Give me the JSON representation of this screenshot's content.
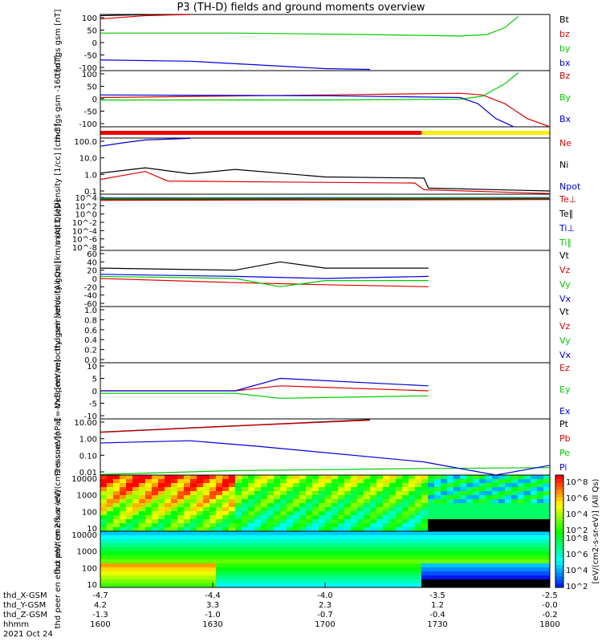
{
  "title": "P3 (TH-D) fields and ground moments overview",
  "chart_data": {
    "type": "line",
    "title": "P3 (TH-D) fields and ground moments overview",
    "date": "2021 Oct 24",
    "xaxis": {
      "time_ticks": [
        "1600",
        "1630",
        "1700",
        "1730",
        "1800"
      ],
      "rows": [
        {
          "label": "thd_X-GSM",
          "ticks": [
            "-4.7",
            "-4.4",
            "-4.0",
            "-3.5",
            "-2.5"
          ]
        },
        {
          "label": "thd_Y-GSM",
          "ticks": [
            "4.2",
            "3.3",
            "2.3",
            "1.2",
            "-0.0"
          ]
        },
        {
          "label": "thd_Z-GSM",
          "ticks": [
            "-1.3",
            "-1.0",
            "-0.7",
            "-0.4",
            "-0.2"
          ]
        },
        {
          "label": "hhmm",
          "ticks": [
            "1600",
            "1630",
            "1700",
            "1730",
            "1800"
          ]
        }
      ]
    },
    "panels": [
      {
        "id": "fgs_gsm",
        "ylabel": "thd fgs gsm [nT]",
        "yticks": [
          "100",
          "50",
          "0",
          "-50",
          "-100"
        ],
        "series": [
          {
            "name": "Bt",
            "color": "#000000",
            "points": [
              [
                0,
                108
              ],
              [
                0.1,
                112
              ],
              [
                0.2,
                120
              ]
            ]
          },
          {
            "name": "bz",
            "color": "#dd0000",
            "points": [
              [
                0,
                95
              ],
              [
                0.1,
                108
              ],
              [
                0.2,
                118
              ]
            ]
          },
          {
            "name": "by",
            "color": "#00cc00",
            "points": [
              [
                0,
                38
              ],
              [
                0.3,
                38
              ],
              [
                0.6,
                32
              ],
              [
                0.8,
                26
              ],
              [
                0.86,
                32
              ],
              [
                0.9,
                60
              ],
              [
                0.93,
                105
              ]
            ]
          },
          {
            "name": "bx",
            "color": "#0000dd",
            "points": [
              [
                0,
                -70
              ],
              [
                0.2,
                -75
              ],
              [
                0.4,
                -95
              ],
              [
                0.5,
                -105
              ],
              [
                0.6,
                -108
              ]
            ]
          }
        ]
      },
      {
        "id": "fgs_gse",
        "ylabel": "thd fgs gsm -160 [nT]",
        "yticks": [
          "100",
          "50",
          "0",
          "-50",
          "-100"
        ],
        "series": [
          {
            "name": "Bz",
            "color": "#dd0000",
            "points": [
              [
                0,
                5
              ],
              [
                0.5,
                15
              ],
              [
                0.8,
                22
              ],
              [
                0.85,
                15
              ],
              [
                0.9,
                -20
              ],
              [
                0.95,
                -80
              ],
              [
                1,
                -135
              ]
            ]
          },
          {
            "name": "By",
            "color": "#00cc00",
            "points": [
              [
                0,
                -5
              ],
              [
                0.5,
                -5
              ],
              [
                0.8,
                -2
              ],
              [
                0.85,
                10
              ],
              [
                0.9,
                60
              ],
              [
                0.93,
                105
              ]
            ]
          },
          {
            "name": "Bx",
            "color": "#0000dd",
            "points": [
              [
                0,
                15
              ],
              [
                0.5,
                12
              ],
              [
                0.8,
                5
              ],
              [
                0.84,
                -20
              ],
              [
                0.88,
                -80
              ],
              [
                0.92,
                -135
              ]
            ]
          }
        ]
      },
      {
        "id": "density",
        "ylabel": "Density [1/cc] [cm-3]",
        "yticks": [
          "100.0",
          "10.0",
          "1.0",
          "0.1"
        ],
        "series": [
          {
            "name": "Ne",
            "color": "#dd0000",
            "points": [
              [
                0,
                0.5
              ],
              [
                0.1,
                1.5
              ],
              [
                0.15,
                0.4
              ],
              [
                0.4,
                0.35
              ],
              [
                0.7,
                0.3
              ],
              [
                0.72,
                0.12
              ],
              [
                1,
                0.07
              ]
            ]
          },
          {
            "name": "Ni",
            "color": "#000000",
            "points": [
              [
                0,
                1.2
              ],
              [
                0.1,
                2.5
              ],
              [
                0.2,
                1.1
              ],
              [
                0.3,
                2
              ],
              [
                0.5,
                0.7
              ],
              [
                0.72,
                0.6
              ],
              [
                0.73,
                0.15
              ],
              [
                1,
                0.1
              ]
            ]
          },
          {
            "name": "Npot",
            "color": "#0000dd",
            "points": [
              [
                0,
                50
              ],
              [
                0.05,
                80
              ],
              [
                0.1,
                120
              ],
              [
                0.2,
                150
              ]
            ]
          }
        ]
      },
      {
        "id": "temperature",
        "ylabel": "moqt3 [eV]",
        "yticks": [
          "10^4",
          "10^2",
          "10^0",
          "10^-2",
          "10^-4",
          "10^-6",
          "10^-8"
        ],
        "series": [
          {
            "name": "Te⊥",
            "color": "#dd0000",
            "points": [
              [
                0,
                2000
              ],
              [
                1,
                3000
              ]
            ]
          },
          {
            "name": "Te∥",
            "color": "#000000",
            "points": [
              [
                0,
                4000
              ],
              [
                1,
                5000
              ]
            ]
          },
          {
            "name": "Ti⊥",
            "color": "#0000dd",
            "points": [
              [
                0,
                8000
              ],
              [
                1,
                9000
              ]
            ]
          },
          {
            "name": "Ti∥",
            "color": "#00cc00",
            "points": [
              [
                0,
                6000
              ],
              [
                1,
                7000
              ]
            ]
          }
        ]
      },
      {
        "id": "peir_velocity",
        "ylabel": "thd peir velocity gsm [km/s (All Qs)]",
        "yticks": [
          "60",
          "40",
          "20",
          "0",
          "-20",
          "-40",
          "-60"
        ],
        "series": [
          {
            "name": "Vt",
            "color": "#000000",
            "points": [
              [
                0,
                25
              ],
              [
                0.3,
                20
              ],
              [
                0.4,
                40
              ],
              [
                0.5,
                25
              ],
              [
                0.73,
                25
              ]
            ]
          },
          {
            "name": "Vz",
            "color": "#dd0000",
            "points": [
              [
                0,
                0
              ],
              [
                0.3,
                -10
              ],
              [
                0.5,
                -15
              ],
              [
                0.73,
                -20
              ]
            ]
          },
          {
            "name": "Vy",
            "color": "#00cc00",
            "points": [
              [
                0,
                5
              ],
              [
                0.3,
                0
              ],
              [
                0.4,
                -20
              ],
              [
                0.5,
                -5
              ],
              [
                0.73,
                -5
              ]
            ]
          },
          {
            "name": "Vx",
            "color": "#0000dd",
            "points": [
              [
                0,
                10
              ],
              [
                0.3,
                5
              ],
              [
                0.5,
                0
              ],
              [
                0.73,
                5
              ]
            ]
          }
        ]
      },
      {
        "id": "peer_velocity",
        "ylabel": "thd peer velocity gsm [km/s (All Qs)]",
        "yticks": [
          "1.0",
          "0.8",
          "0.6",
          "0.4",
          "0.2",
          "0.0"
        ],
        "series": [
          {
            "name": "Vt",
            "color": "#000000",
            "points": []
          },
          {
            "name": "Vz",
            "color": "#dd0000",
            "points": []
          },
          {
            "name": "Vy",
            "color": "#00cc00",
            "points": []
          },
          {
            "name": "Vx",
            "color": "#0000dd",
            "points": []
          }
        ]
      },
      {
        "id": "efield",
        "ylabel": "E=-VxB [mV/m]",
        "yticks": [
          "10",
          "5",
          "0",
          "-5",
          "-10"
        ],
        "series": [
          {
            "name": "Ez",
            "color": "#dd0000",
            "points": [
              [
                0,
                0
              ],
              [
                0.3,
                0
              ],
              [
                0.4,
                2
              ],
              [
                0.73,
                0
              ]
            ]
          },
          {
            "name": "Ey",
            "color": "#00cc00",
            "points": [
              [
                0,
                -1
              ],
              [
                0.3,
                -1
              ],
              [
                0.4,
                -3
              ],
              [
                0.73,
                -2
              ]
            ]
          },
          {
            "name": "Ex",
            "color": "#0000dd",
            "points": [
              [
                0,
                0
              ],
              [
                0.3,
                0
              ],
              [
                0.4,
                5
              ],
              [
                0.73,
                2
              ]
            ]
          }
        ]
      },
      {
        "id": "pressure",
        "ylabel": "Pressure [nPa]",
        "yticks": [
          "10.00",
          "1.00",
          "0.10",
          "0.01"
        ],
        "series": [
          {
            "name": "Pt",
            "color": "#000000",
            "points": [
              [
                0,
                2.5
              ],
              [
                0.3,
                6
              ],
              [
                0.6,
                14
              ]
            ]
          },
          {
            "name": "Pb",
            "color": "#dd0000",
            "points": [
              [
                0,
                2.4
              ],
              [
                0.3,
                5.8
              ],
              [
                0.6,
                13
              ]
            ]
          },
          {
            "name": "Pe",
            "color": "#00cc00",
            "points": [
              [
                0,
                0.007
              ],
              [
                0.3,
                0.012
              ],
              [
                0.72,
                0.016
              ],
              [
                1,
                0.018
              ]
            ]
          },
          {
            "name": "Pi",
            "color": "#0000dd",
            "points": [
              [
                0,
                0.55
              ],
              [
                0.2,
                0.75
              ],
              [
                0.35,
                0.35
              ],
              [
                0.72,
                0.04
              ],
              [
                0.88,
                0.004
              ],
              [
                1,
                0.025
              ]
            ]
          }
        ]
      },
      {
        "id": "peir_spec",
        "ylabel": "thd peir en eflux (eV/(cm2-s-sr-eV))",
        "yticks": [
          "10000",
          "1000",
          "100",
          "10"
        ],
        "spectrogram": true
      },
      {
        "id": "peer_spec",
        "ylabel": "thd peer en eflux eV/(cm2-s-sr-eV)",
        "yticks": [
          "10000",
          "1000",
          "100",
          "10"
        ],
        "spectrogram": true
      }
    ],
    "colorbar": {
      "label": "[eV/(cm2-s-sr-eV)] (All Qs)",
      "ticks": [
        "10^8",
        "10^6",
        "10^4",
        "10^2"
      ]
    }
  }
}
